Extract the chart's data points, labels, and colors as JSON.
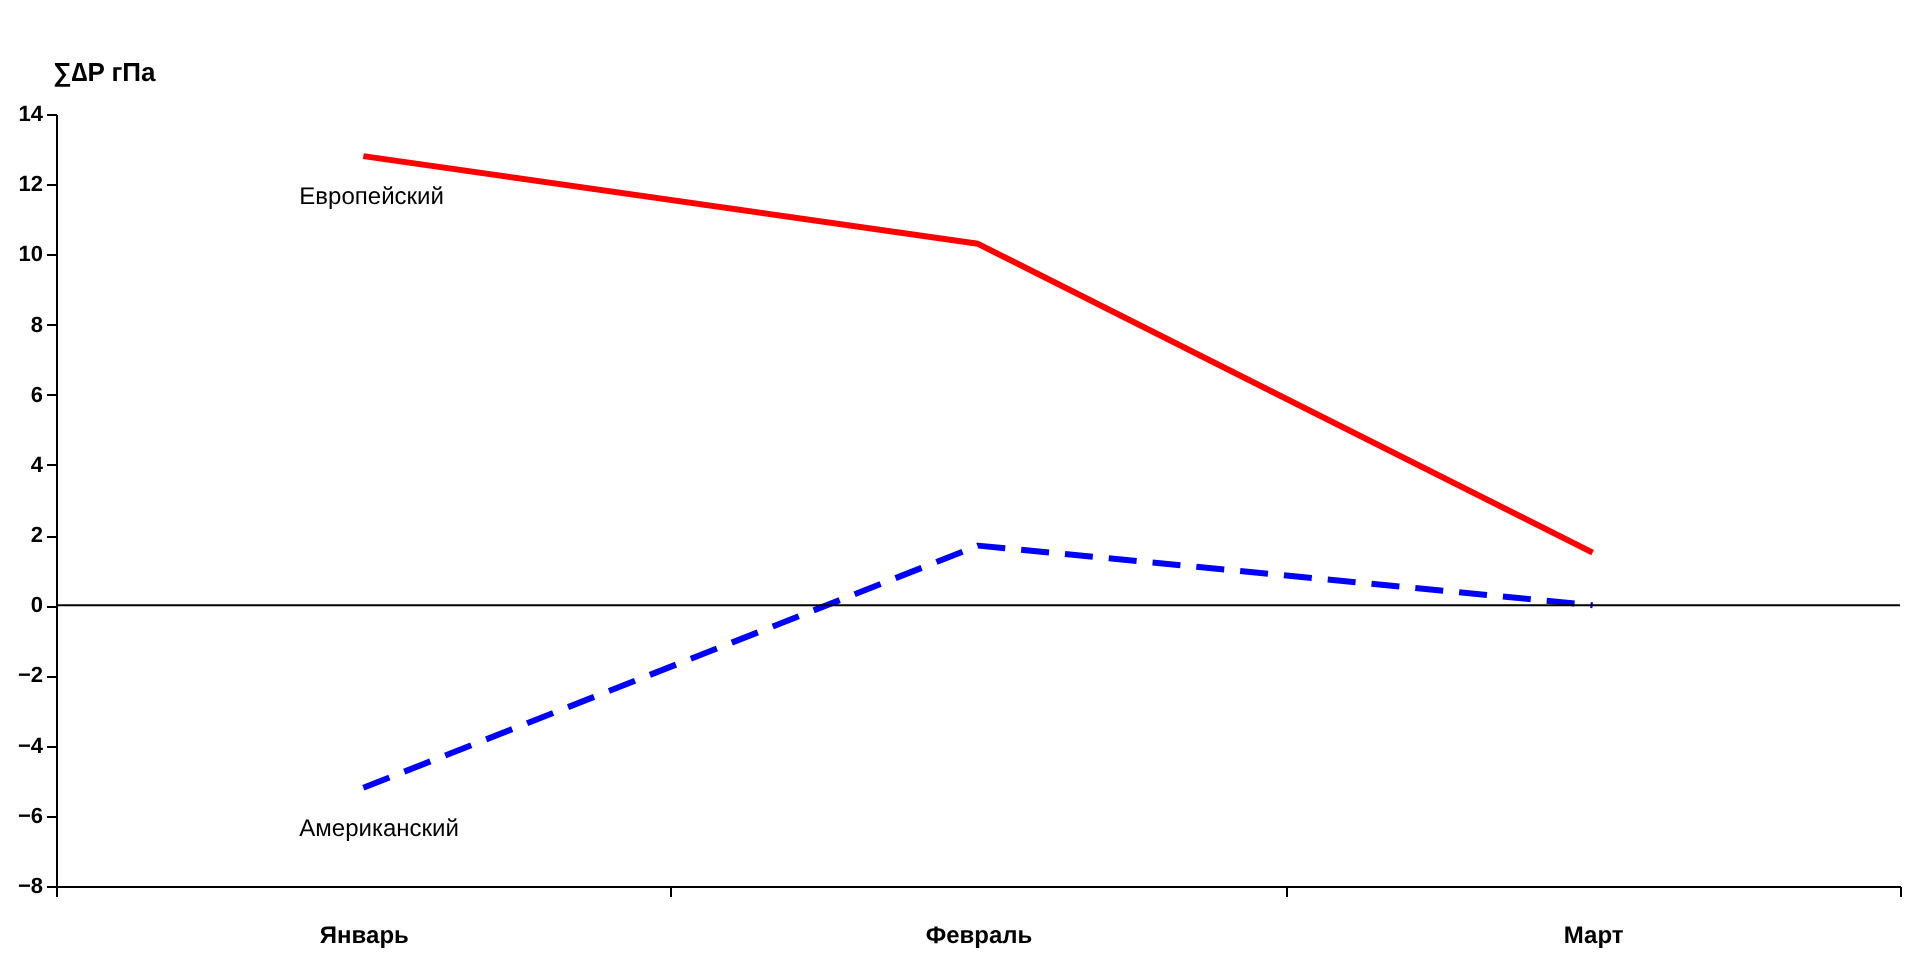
{
  "chart_data": {
    "type": "line",
    "ylabel": "∑∆P гПа",
    "categories": [
      "Январь",
      "Февраль",
      "Март"
    ],
    "series": [
      {
        "name": "Европейский",
        "color": "#ff0000",
        "line_style": "solid",
        "values": [
          12.8,
          10.3,
          1.5
        ]
      },
      {
        "name": "Американский",
        "color": "#0000ff",
        "line_style": "dashed",
        "values": [
          -5.2,
          1.7,
          0
        ]
      }
    ],
    "ylim": [
      -8,
      14
    ],
    "yticks": [
      -8,
      -6,
      -4,
      -2,
      0,
      2,
      4,
      6,
      8,
      10,
      12,
      14
    ],
    "ref_lines": [
      {
        "axis": "y",
        "value": 0,
        "color": "#000000"
      }
    ],
    "grid": false,
    "legend": false,
    "marker": "none"
  }
}
